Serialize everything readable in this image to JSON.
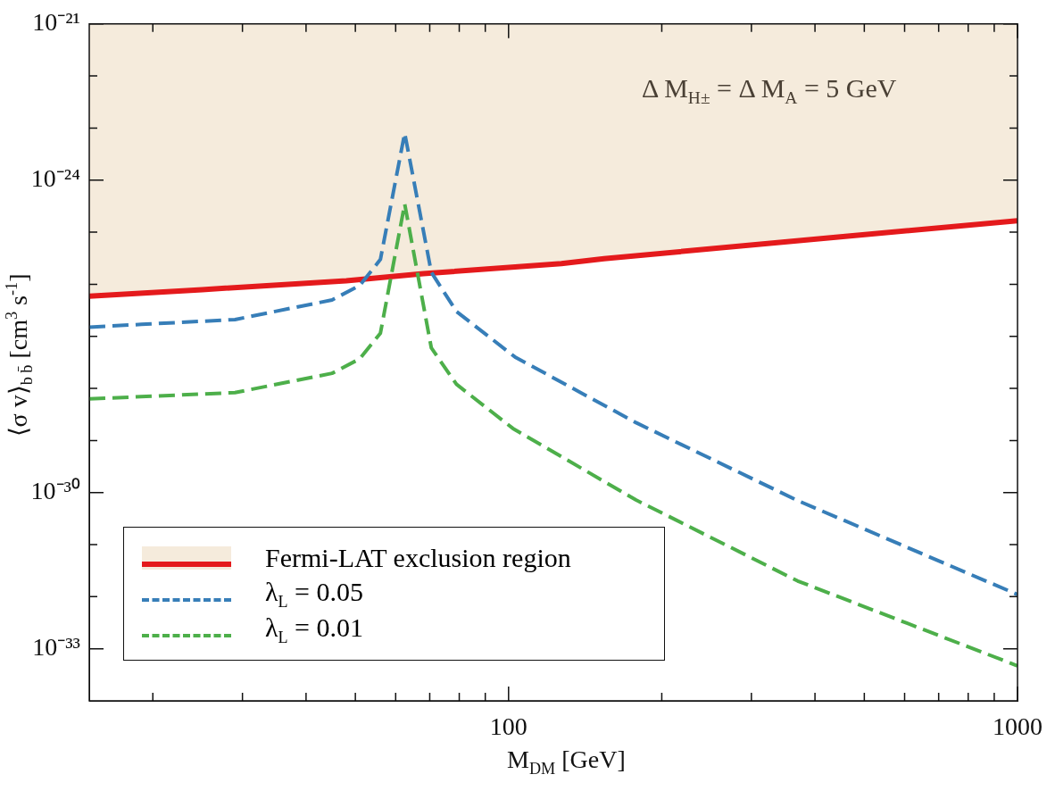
{
  "chart_data": {
    "type": "line",
    "xlabel": "M$_{DM}$ [GeV]",
    "ylabel": "⟨σ v⟩$_{b b̄}$ [cm$^{3}$ s$^{-1}$]",
    "annotations": [
      "Δ M$_{H±}$ = Δ M$_{A}$ = 5 GeV"
    ],
    "log": "xy",
    "xlim": [
      15,
      1000
    ],
    "ylim": [
      1e-34,
      1e-21
    ],
    "xticks": [
      {
        "value": 20,
        "label": null
      },
      {
        "value": 30,
        "label": null
      },
      {
        "value": 40,
        "label": null
      },
      {
        "value": 50,
        "label": null
      },
      {
        "value": 60,
        "label": null
      },
      {
        "value": 70,
        "label": null
      },
      {
        "value": 80,
        "label": null
      },
      {
        "value": 90,
        "label": null
      },
      100,
      {
        "value": 200,
        "label": null
      },
      {
        "value": 300,
        "label": null
      },
      {
        "value": 400,
        "label": null
      },
      {
        "value": 500,
        "label": null
      },
      {
        "value": 600,
        "label": null
      },
      {
        "value": 700,
        "label": null
      },
      {
        "value": 800,
        "label": null
      },
      {
        "value": 900,
        "label": null
      },
      1000
    ],
    "yticks": [
      {
        "value": 1e-21,
        "label": "10⁻²¹"
      },
      {
        "value": 1e-22,
        "label": null
      },
      {
        "value": 1e-23,
        "label": null
      },
      {
        "value": 1e-24,
        "label": "10⁻²⁴"
      },
      {
        "value": 1e-25,
        "label": null
      },
      {
        "value": 1e-26,
        "label": null
      },
      {
        "value": 1e-27,
        "label": null
      },
      {
        "value": 1e-28,
        "label": null
      },
      {
        "value": 1e-29,
        "label": null
      },
      {
        "value": 1e-30,
        "label": "10⁻³⁰"
      },
      {
        "value": 1e-31,
        "label": null
      },
      {
        "value": 1e-32,
        "label": null
      },
      {
        "value": 1e-33,
        "label": "10⁻³³"
      }
    ],
    "grid": false,
    "legend": "bottom left",
    "marker": "none",
    "series": [
      {
        "name": "Fermi-LAT exclusion region",
        "type": "line",
        "color": "#e41a1c",
        "line_style": "solid",
        "x": [
          15,
          25,
          48,
          68,
          127,
          154,
          444,
          1000
        ],
        "values": [
          5.9e-27,
          7.9e-27,
          1.17e-26,
          1.6e-26,
          2.5e-26,
          3.1e-26,
          8.1e-26,
          1.66e-25
        ],
        "lower": [
          5.9e-27,
          7.9e-27,
          1.17e-26,
          1.6e-26,
          2.5e-26,
          3.1e-26,
          8.1e-26,
          1.66e-25
        ],
        "upper": [
          1e-21,
          1e-21,
          1e-21,
          1e-21,
          1e-21,
          1e-21,
          1e-21,
          1e-21
        ]
      },
      {
        "name": "λ$_{L}$ = 0.05",
        "type": "line",
        "color": "#377eb8",
        "line_style": "dashed",
        "x": [
          15,
          19,
          29,
          45,
          51,
          56,
          62.5,
          70.5,
          79,
          103,
          178,
          370,
          1000
        ],
        "values": [
          1.5e-27,
          1.7e-27,
          2.1e-27,
          5e-27,
          9.5e-27,
          3e-26,
          8e-24,
          1.7e-26,
          3e-27,
          4e-28,
          2.2e-29,
          7e-31,
          1.1e-32
        ]
      },
      {
        "name": "λ$_{L}$ = 0.01",
        "type": "line",
        "color": "#4daf4a",
        "line_style": "dashed",
        "x": [
          15,
          29,
          45,
          51,
          56,
          62.5,
          70.5,
          79,
          102,
          178,
          370,
          1000
        ],
        "values": [
          6.3e-29,
          8.3e-29,
          1.95e-28,
          3.7e-28,
          1.15e-27,
          3.5e-25,
          6e-28,
          1.2e-28,
          1.7e-29,
          7.2e-31,
          2e-32,
          4.7e-34
        ]
      }
    ]
  }
}
